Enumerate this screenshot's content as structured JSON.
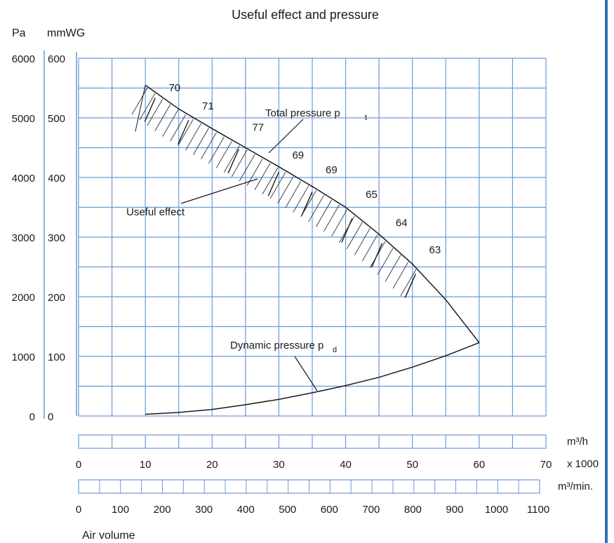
{
  "chart_data": {
    "type": "line",
    "title": "Useful effect and pressure",
    "y_left_unit": "Pa",
    "y_right_unit": "mmWG",
    "y_pa_ticks": [
      "0",
      "1000",
      "2000",
      "3000",
      "4000",
      "5000",
      "6000"
    ],
    "y_mmwg_ticks": [
      "0",
      "100",
      "200",
      "300",
      "400",
      "500",
      "600"
    ],
    "ylim_mmwg": [
      0,
      600
    ],
    "xlim": [
      0,
      70
    ],
    "x_ticks_m3h": [
      "0",
      "10",
      "20",
      "30",
      "40",
      "50",
      "60",
      "70"
    ],
    "x_unit_m3h": "m³/h",
    "x_multiplier": "x 1000",
    "x_ticks_m3min": [
      "0",
      "100",
      "200",
      "300",
      "400",
      "500",
      "600",
      "700",
      "800",
      "900",
      "1000",
      "1100"
    ],
    "x_unit_m3min": "m³/min.",
    "x_label": "Air volume",
    "grid": true,
    "series": [
      {
        "name": "Total pressure pt",
        "x": [
          10,
          15,
          20,
          25,
          30,
          35,
          40,
          45,
          50,
          55,
          60
        ],
        "y": [
          555,
          515,
          482,
          450,
          418,
          385,
          350,
          305,
          255,
          195,
          123
        ]
      },
      {
        "name": "Dynamic pressure pd",
        "x": [
          10,
          15,
          20,
          25,
          30,
          35,
          40,
          45,
          50,
          55,
          60
        ],
        "y": [
          3,
          6,
          11,
          19,
          28,
          39,
          51,
          65,
          82,
          101,
          123
        ]
      }
    ],
    "annotations": {
      "total_pressure_label": "Total pressure p",
      "total_pressure_sub": "t",
      "dynamic_pressure_label": "Dynamic pressure p",
      "dynamic_pressure_sub": "d",
      "useful_effect_label": "Useful effect",
      "efficiency_points": [
        {
          "label": "70",
          "x": 13.5,
          "y": 545
        },
        {
          "label": "71",
          "x": 18.5,
          "y": 514
        },
        {
          "label": "77",
          "x": 26,
          "y": 478
        },
        {
          "label": "69",
          "x": 32,
          "y": 432
        },
        {
          "label": "69",
          "x": 37,
          "y": 407
        },
        {
          "label": "65",
          "x": 43,
          "y": 366
        },
        {
          "label": "64",
          "x": 47.5,
          "y": 318
        },
        {
          "label": "63",
          "x": 52.5,
          "y": 273
        }
      ]
    }
  }
}
